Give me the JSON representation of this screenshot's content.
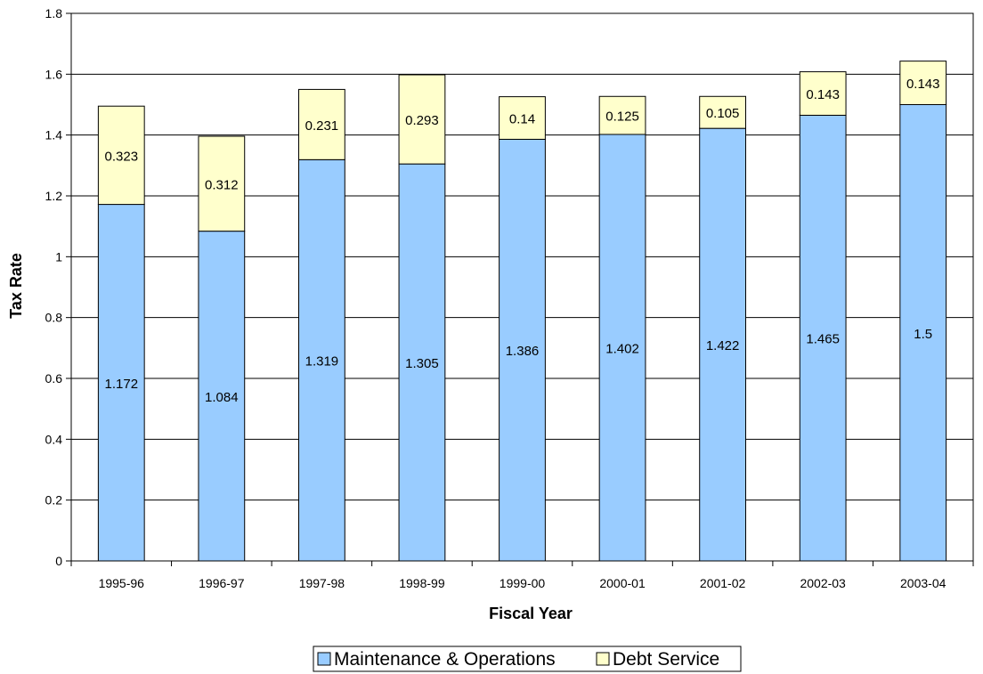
{
  "chart_data": {
    "type": "bar",
    "stacked": true,
    "title": "",
    "xlabel": "Fiscal Year",
    "ylabel": "Tax Rate",
    "ylim": [
      0,
      1.8
    ],
    "ytick_step": 0.2,
    "grid": true,
    "legend_position": "bottom",
    "categories": [
      "1995-96",
      "1996-97",
      "1997-98",
      "1998-99",
      "1999-00",
      "2000-01",
      "2001-02",
      "2002-03",
      "2003-04"
    ],
    "series": [
      {
        "name": "Maintenance & Operations",
        "color": "#99ccff",
        "values": [
          1.172,
          1.084,
          1.319,
          1.305,
          1.386,
          1.402,
          1.422,
          1.465,
          1.5
        ],
        "labels": [
          "1.172",
          "1.084",
          "1.319",
          "1.305",
          "1.386",
          "1.402",
          "1.422",
          "1.465",
          "1.5"
        ]
      },
      {
        "name": "Debt Service",
        "color": "#ffffcc",
        "values": [
          0.323,
          0.312,
          0.231,
          0.293,
          0.14,
          0.125,
          0.105,
          0.143,
          0.143
        ],
        "labels": [
          "0.323",
          "0.312",
          "0.231",
          "0.293",
          "0.14",
          "0.125",
          "0.105",
          "0.143",
          "0.143"
        ]
      }
    ]
  }
}
